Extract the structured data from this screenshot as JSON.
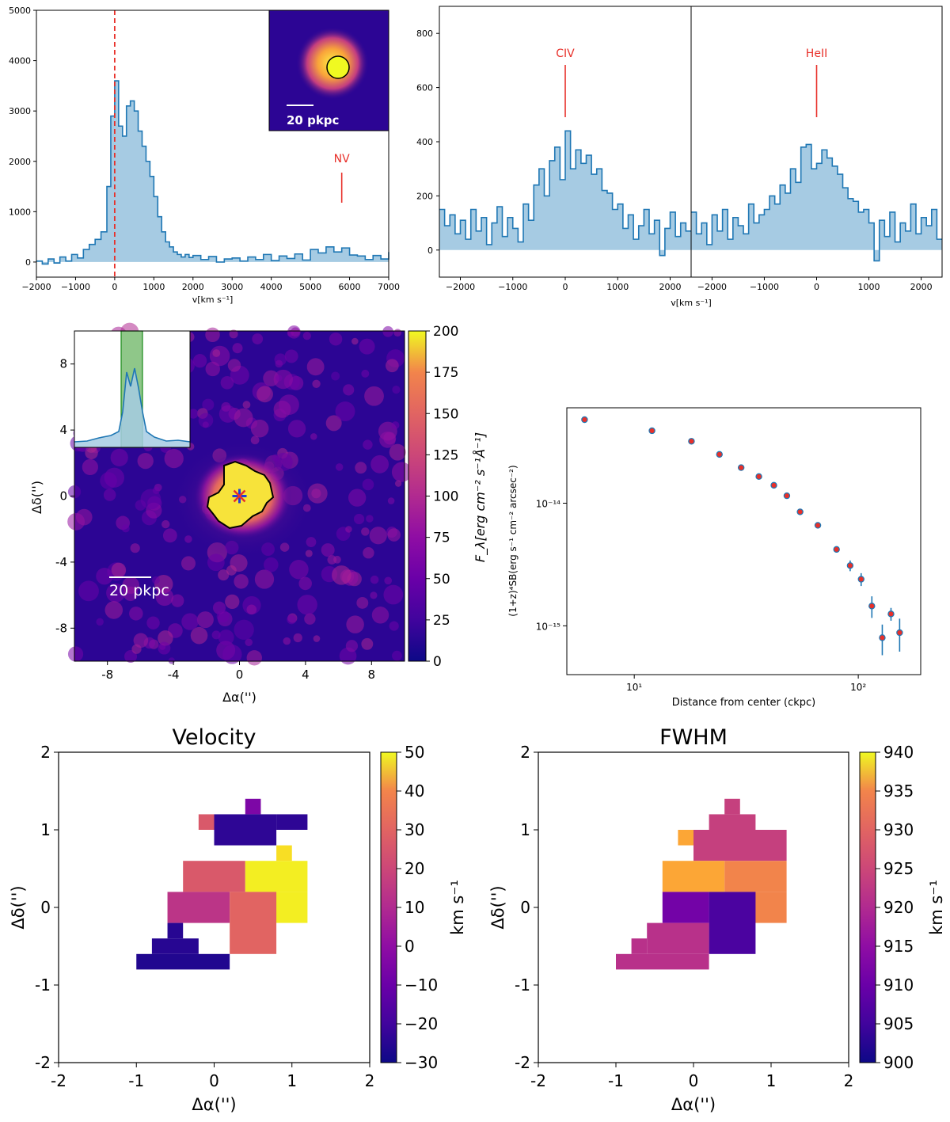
{
  "chart_data": [
    {
      "id": "lya-spectrum",
      "type": "area",
      "xlabel": "v[km s⁻¹]",
      "ylabel": "",
      "xlim": [
        -2000,
        7000
      ],
      "ylim": [
        -300,
        5000
      ],
      "xticks": [
        -2000,
        -1000,
        0,
        1000,
        2000,
        3000,
        4000,
        5000,
        6000,
        7000
      ],
      "xtick_labels": [
        "−2000",
        "−1000",
        "0",
        "1000",
        "2000",
        "3000",
        "4000",
        "5000",
        "6000",
        "7000"
      ],
      "yticks": [
        0,
        1000,
        2000,
        3000,
        4000,
        5000
      ],
      "ytick_labels": [
        "0",
        "1000",
        "2000",
        "3000",
        "4000",
        "5000"
      ],
      "vline_x": 0,
      "line_label": "NV",
      "line_x": 5800,
      "inset_scale_label": "20 pkpc",
      "series": [
        {
          "name": "spectrum",
          "x": [
            -2000,
            -1850,
            -1700,
            -1550,
            -1400,
            -1250,
            -1100,
            -950,
            -800,
            -650,
            -500,
            -350,
            -200,
            -100,
            0,
            100,
            200,
            300,
            400,
            500,
            600,
            700,
            800,
            900,
            1000,
            1100,
            1200,
            1300,
            1400,
            1500,
            1600,
            1700,
            1800,
            1900,
            2000,
            2200,
            2400,
            2600,
            2800,
            3000,
            3200,
            3400,
            3600,
            3800,
            4000,
            4200,
            4400,
            4600,
            4800,
            5000,
            5200,
            5400,
            5600,
            5800,
            6000,
            6200,
            6400,
            6600,
            6800,
            7000
          ],
          "y": [
            20,
            -40,
            60,
            -20,
            100,
            20,
            150,
            80,
            250,
            350,
            450,
            600,
            1500,
            2900,
            3600,
            2700,
            2500,
            3100,
            3200,
            3000,
            2600,
            2300,
            2000,
            1700,
            1300,
            900,
            600,
            400,
            300,
            200,
            150,
            100,
            150,
            90,
            130,
            50,
            110,
            0,
            60,
            80,
            20,
            100,
            50,
            150,
            30,
            120,
            70,
            160,
            40,
            250,
            180,
            300,
            200,
            280,
            140,
            120,
            50,
            130,
            60,
            200
          ]
        }
      ]
    },
    {
      "id": "civ-spectrum",
      "type": "area",
      "xlabel": "",
      "xlim": [
        -2400,
        2400
      ],
      "ylim": [
        -100,
        900
      ],
      "xticks": [
        -2000,
        -1000,
        0,
        1000,
        2000
      ],
      "xtick_labels": [
        "−2000",
        "−1000",
        "0",
        "1000",
        "2000"
      ],
      "yticks": [
        0,
        200,
        400,
        600,
        800
      ],
      "ytick_labels": [
        "0",
        "200",
        "400",
        "600",
        "800"
      ],
      "line_label": "CIV",
      "line_x": 0,
      "series": [
        {
          "name": "spectrum",
          "x": [
            -2400,
            -2300,
            -2200,
            -2100,
            -2000,
            -1900,
            -1800,
            -1700,
            -1600,
            -1500,
            -1400,
            -1300,
            -1200,
            -1100,
            -1000,
            -900,
            -800,
            -700,
            -600,
            -500,
            -400,
            -300,
            -200,
            -100,
            0,
            100,
            200,
            300,
            400,
            500,
            600,
            700,
            800,
            900,
            1000,
            1100,
            1200,
            1300,
            1400,
            1500,
            1600,
            1700,
            1800,
            1900,
            2000,
            2100,
            2200,
            2300
          ],
          "y": [
            150,
            90,
            130,
            60,
            110,
            40,
            150,
            70,
            120,
            20,
            100,
            160,
            50,
            120,
            80,
            30,
            170,
            110,
            240,
            300,
            200,
            330,
            380,
            260,
            440,
            300,
            370,
            320,
            350,
            280,
            300,
            220,
            210,
            150,
            170,
            80,
            130,
            40,
            90,
            150,
            60,
            110,
            -20,
            80,
            140,
            50,
            100,
            70
          ]
        }
      ]
    },
    {
      "id": "heii-spectrum",
      "type": "area",
      "xlabel": "v[km s⁻¹]",
      "xlim": [
        -2400,
        2400
      ],
      "ylim": [
        -100,
        900
      ],
      "xticks": [
        -2000,
        -1000,
        0,
        1000,
        2000
      ],
      "xtick_labels": [
        "−2000",
        "−1000",
        "0",
        "1000",
        "2000"
      ],
      "line_label": "HeII",
      "line_x": 0,
      "series": [
        {
          "name": "spectrum",
          "x": [
            -2400,
            -2300,
            -2200,
            -2100,
            -2000,
            -1900,
            -1800,
            -1700,
            -1600,
            -1500,
            -1400,
            -1300,
            -1200,
            -1100,
            -1000,
            -900,
            -800,
            -700,
            -600,
            -500,
            -400,
            -300,
            -200,
            -100,
            0,
            100,
            200,
            300,
            400,
            500,
            600,
            700,
            800,
            900,
            1000,
            1100,
            1200,
            1300,
            1400,
            1500,
            1600,
            1700,
            1800,
            1900,
            2000,
            2100,
            2200,
            2300
          ],
          "y": [
            140,
            60,
            100,
            20,
            130,
            70,
            150,
            40,
            120,
            90,
            60,
            170,
            100,
            130,
            150,
            200,
            170,
            240,
            210,
            300,
            250,
            380,
            390,
            300,
            320,
            370,
            340,
            310,
            280,
            230,
            190,
            180,
            140,
            150,
            100,
            -40,
            110,
            50,
            140,
            30,
            100,
            70,
            170,
            60,
            120,
            90,
            150,
            40
          ]
        }
      ]
    },
    {
      "id": "narrowband-map",
      "type": "heatmap",
      "xlabel": "Δα('')",
      "ylabel": "Δδ('')",
      "xlim": [
        -10,
        10
      ],
      "ylim": [
        -10,
        10
      ],
      "xticks": [
        -8,
        -4,
        0,
        4,
        8
      ],
      "xtick_labels": [
        "-8",
        "-4",
        "0",
        "4",
        "8"
      ],
      "yticks": [
        -8,
        -4,
        0,
        4,
        8
      ],
      "ytick_labels": [
        "-8",
        "-4",
        "0",
        "4",
        "8"
      ],
      "colorbar_label": "F_λ[erg cm⁻² s⁻¹Å⁻¹]",
      "colorbar_range": [
        0,
        200
      ],
      "colorbar_ticks": [
        "0",
        "25",
        "50",
        "75",
        "100",
        "125",
        "150",
        "175",
        "200"
      ],
      "scale_label": "20 pkpc",
      "center_marker": [
        0,
        0
      ]
    },
    {
      "id": "sb-profile",
      "type": "scatter",
      "xscale": "log",
      "yscale": "log",
      "xlabel": "Distance from center (ckpc)",
      "ylabel": "(1+z)⁴SB(erg s⁻¹ cm⁻² arcsec⁻²)",
      "xlim": [
        5,
        190
      ],
      "ylim": [
        4e-16,
        6e-14
      ],
      "xtick_labels": [
        "10¹",
        "10²"
      ],
      "ytick_labels": [
        "10⁻¹⁵",
        "10⁻¹⁴"
      ],
      "x": [
        6,
        12,
        18,
        24,
        30,
        36,
        42,
        48,
        55,
        66,
        80,
        92,
        103,
        115,
        128,
        140,
        153
      ],
      "y": [
        4.8e-14,
        3.9e-14,
        3.2e-14,
        2.5e-14,
        1.95e-14,
        1.65e-14,
        1.4e-14,
        1.15e-14,
        8.5e-15,
        6.6e-15,
        4.2e-15,
        3.1e-15,
        2.4e-15,
        1.45e-15,
        8e-16,
        1.25e-15,
        8.8e-16
      ],
      "yerr_frac": [
        0.02,
        0.02,
        0.02,
        0.03,
        0.03,
        0.03,
        0.03,
        0.04,
        0.04,
        0.05,
        0.06,
        0.1,
        0.12,
        0.2,
        0.28,
        0.12,
        0.3
      ]
    },
    {
      "id": "velocity-map",
      "type": "heatmap",
      "title": "Velocity",
      "xlabel": "Δα('')",
      "ylabel": "Δδ('')",
      "xlim": [
        -2,
        2
      ],
      "ylim": [
        -2,
        2
      ],
      "xtick_labels": [
        "-2",
        "-1",
        "0",
        "1",
        "2"
      ],
      "ytick_labels": [
        "-2",
        "-1",
        "0",
        "1",
        "2"
      ],
      "colorbar_label": "km s⁻¹",
      "colorbar_range": [
        -30,
        50
      ],
      "colorbar_ticks": [
        "−30",
        "−20",
        "−10",
        "0",
        "10",
        "20",
        "30",
        "40",
        "50"
      ],
      "cells": [
        [
          0.4,
          1.2,
          0.6,
          1.4,
          -10
        ],
        [
          -0.2,
          1.0,
          0.0,
          1.2,
          15
        ],
        [
          0.0,
          0.8,
          0.8,
          1.2,
          -25
        ],
        [
          0.8,
          1.0,
          1.2,
          1.2,
          -25
        ],
        [
          0.8,
          0.6,
          1.0,
          0.8,
          45
        ],
        [
          -0.4,
          0.2,
          0.4,
          0.6,
          15
        ],
        [
          0.4,
          0.2,
          1.2,
          0.6,
          48
        ],
        [
          0.4,
          -0.2,
          1.2,
          0.2,
          48
        ],
        [
          -0.6,
          -0.2,
          0.2,
          0.2,
          5
        ],
        [
          0.2,
          -0.6,
          0.8,
          0.2,
          18
        ],
        [
          -0.6,
          -0.4,
          -0.4,
          -0.2,
          -26
        ],
        [
          -0.8,
          -0.6,
          -0.2,
          -0.4,
          -26
        ],
        [
          -1.0,
          -0.8,
          0.2,
          -0.6,
          -27
        ]
      ]
    },
    {
      "id": "fwhm-map",
      "type": "heatmap",
      "title": "FWHM",
      "xlabel": "Δα('')",
      "ylabel": "Δδ('')",
      "xlim": [
        -2,
        2
      ],
      "ylim": [
        -2,
        2
      ],
      "xtick_labels": [
        "-2",
        "-1",
        "0",
        "1",
        "2"
      ],
      "ytick_labels": [
        "-2",
        "-1",
        "0",
        "1",
        "2"
      ],
      "colorbar_label": "km s⁻¹",
      "colorbar_range": [
        900,
        940
      ],
      "colorbar_ticks": [
        "900",
        "905",
        "910",
        "915",
        "920",
        "925",
        "930",
        "935",
        "940"
      ],
      "cells": [
        [
          0.4,
          1.2,
          0.6,
          1.4,
          919
        ],
        [
          0.2,
          1.0,
          0.8,
          1.2,
          919
        ],
        [
          0.0,
          0.6,
          1.2,
          1.0,
          919
        ],
        [
          -0.2,
          0.8,
          0.0,
          1.0,
          932
        ],
        [
          -0.4,
          0.2,
          0.4,
          0.6,
          932
        ],
        [
          0.4,
          0.2,
          1.2,
          0.6,
          928
        ],
        [
          0.6,
          -0.2,
          1.2,
          0.2,
          928
        ],
        [
          -0.4,
          -0.2,
          0.2,
          0.2,
          909
        ],
        [
          0.2,
          -0.6,
          0.8,
          0.2,
          905
        ],
        [
          -0.6,
          -0.6,
          0.2,
          -0.2,
          917
        ],
        [
          -0.8,
          -0.6,
          -0.6,
          -0.4,
          917
        ],
        [
          -1.0,
          -0.8,
          0.2,
          -0.6,
          917
        ]
      ]
    }
  ]
}
